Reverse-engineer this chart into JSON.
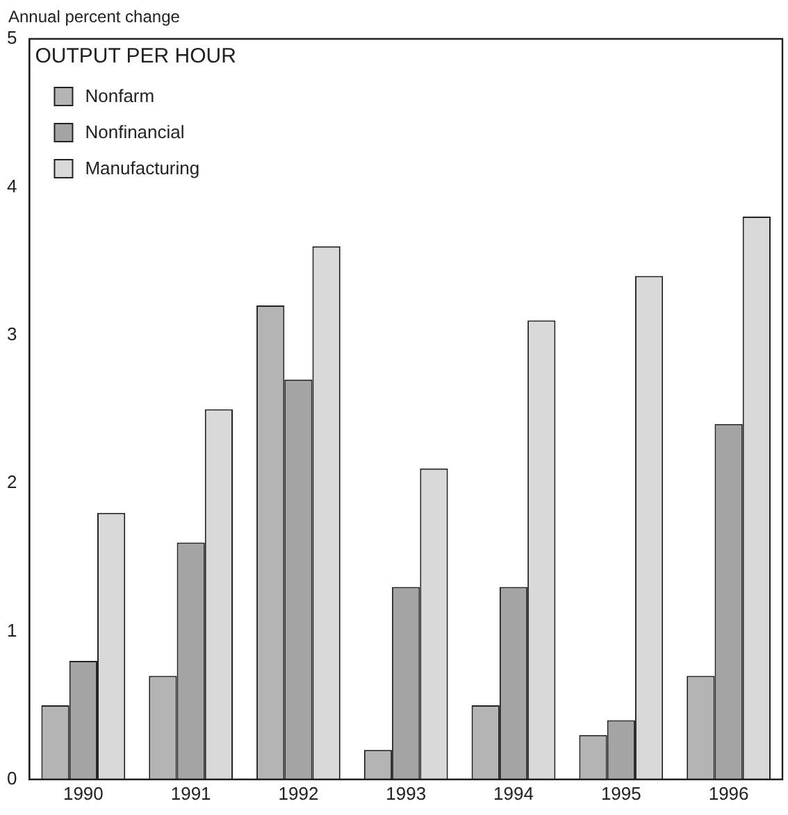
{
  "chart_data": {
    "type": "bar",
    "title": "OUTPUT PER HOUR",
    "ylabel": "Annual percent change",
    "categories": [
      "1990",
      "1991",
      "1992",
      "1993",
      "1994",
      "1995",
      "1996"
    ],
    "series": [
      {
        "name": "Nonfarm",
        "color": "#b4b4b4",
        "values": [
          0.5,
          0.7,
          3.2,
          0.2,
          0.5,
          0.3,
          0.7
        ]
      },
      {
        "name": "Nonfinancial",
        "color": "#a4a4a4",
        "values": [
          0.8,
          1.6,
          2.7,
          1.3,
          1.3,
          0.4,
          2.4
        ]
      },
      {
        "name": "Manufacturing",
        "color": "#d9d9d9",
        "values": [
          1.8,
          2.5,
          3.6,
          2.1,
          3.1,
          3.4,
          3.8
        ]
      }
    ],
    "ylim": [
      0,
      5
    ],
    "yticks": [
      0,
      1,
      2,
      3,
      4,
      5
    ],
    "grid": false,
    "legend": "top left"
  }
}
